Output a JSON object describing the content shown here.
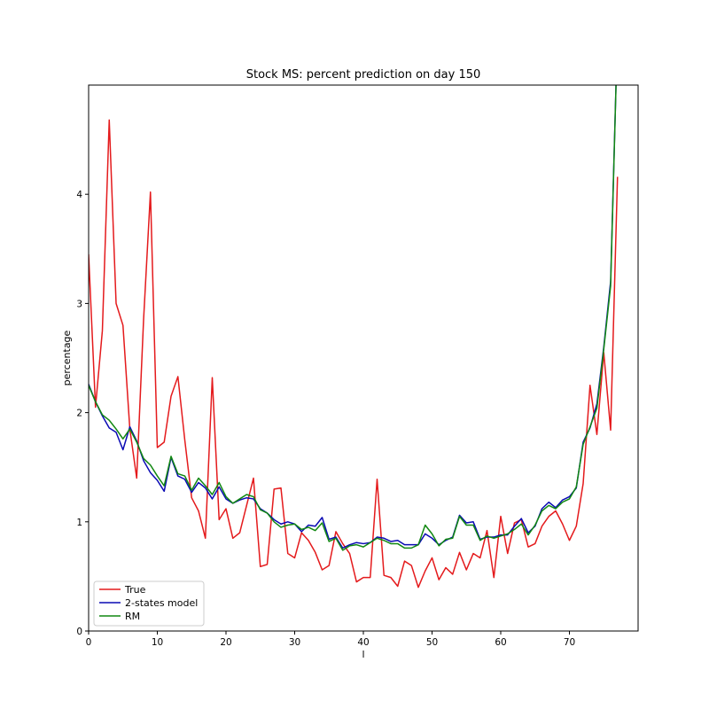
{
  "chart_data": {
    "type": "line",
    "title": "Stock MS: percent prediction on day 150",
    "xlabel": "l",
    "ylabel": "percentage",
    "xlim": [
      0,
      80
    ],
    "ylim": [
      0,
      5
    ],
    "xticks": [
      0,
      10,
      20,
      30,
      40,
      50,
      60,
      70
    ],
    "yticks": [
      0,
      1,
      2,
      3,
      4
    ],
    "grid": false,
    "legend_position": "bottom-left",
    "x": [
      0,
      1,
      2,
      3,
      4,
      5,
      6,
      7,
      8,
      9,
      10,
      11,
      12,
      13,
      14,
      15,
      16,
      17,
      18,
      19,
      20,
      21,
      22,
      23,
      24,
      25,
      26,
      27,
      28,
      29,
      30,
      31,
      32,
      33,
      34,
      35,
      36,
      37,
      38,
      39,
      40,
      41,
      42,
      43,
      44,
      45,
      46,
      47,
      48,
      49,
      50,
      51,
      52,
      53,
      54,
      55,
      56,
      57,
      58,
      59,
      60,
      61,
      62,
      63,
      64,
      65,
      66,
      67,
      68,
      69,
      70,
      71,
      72,
      73,
      74,
      75,
      76,
      77
    ],
    "series": [
      {
        "name": "True",
        "color": "#e41a1c",
        "values": [
          3.45,
          2.05,
          2.75,
          4.68,
          3.0,
          2.8,
          1.85,
          1.4,
          2.85,
          4.02,
          1.68,
          1.73,
          2.15,
          2.33,
          1.75,
          1.22,
          1.1,
          0.85,
          2.32,
          1.02,
          1.12,
          0.85,
          0.9,
          1.15,
          1.4,
          0.59,
          0.61,
          1.3,
          1.31,
          0.71,
          0.67,
          0.9,
          0.83,
          0.72,
          0.56,
          0.6,
          0.91,
          0.8,
          0.71,
          0.45,
          0.49,
          0.49,
          1.39,
          0.51,
          0.49,
          0.41,
          0.64,
          0.6,
          0.4,
          0.55,
          0.67,
          0.47,
          0.58,
          0.52,
          0.72,
          0.56,
          0.71,
          0.67,
          0.92,
          0.49,
          1.05,
          0.71,
          0.99,
          1.02,
          0.77,
          0.8,
          0.96,
          1.05,
          1.1,
          0.98,
          0.83,
          0.96,
          1.35,
          2.25,
          1.8,
          2.55,
          1.84,
          4.16
        ]
      },
      {
        "name": "2-states model",
        "color": "#0a0ab4",
        "values": [
          2.26,
          2.1,
          1.97,
          1.86,
          1.82,
          1.66,
          1.87,
          1.74,
          1.56,
          1.45,
          1.38,
          1.28,
          1.59,
          1.42,
          1.39,
          1.27,
          1.36,
          1.31,
          1.21,
          1.32,
          1.21,
          1.17,
          1.2,
          1.22,
          1.21,
          1.12,
          1.08,
          1.02,
          0.98,
          1.0,
          0.98,
          0.91,
          0.97,
          0.96,
          1.04,
          0.84,
          0.86,
          0.76,
          0.79,
          0.81,
          0.8,
          0.81,
          0.86,
          0.85,
          0.82,
          0.83,
          0.79,
          0.79,
          0.79,
          0.89,
          0.85,
          0.79,
          0.83,
          0.86,
          1.06,
          0.99,
          1.0,
          0.84,
          0.86,
          0.86,
          0.88,
          0.88,
          0.96,
          1.03,
          0.9,
          0.96,
          1.12,
          1.18,
          1.13,
          1.2,
          1.23,
          1.31,
          1.73,
          1.86,
          2.08,
          2.6,
          3.2,
          5.5
        ]
      },
      {
        "name": "RM",
        "color": "#118811",
        "values": [
          2.25,
          2.1,
          1.98,
          1.93,
          1.85,
          1.76,
          1.85,
          1.73,
          1.58,
          1.52,
          1.42,
          1.33,
          1.6,
          1.44,
          1.42,
          1.29,
          1.4,
          1.33,
          1.25,
          1.36,
          1.23,
          1.17,
          1.21,
          1.25,
          1.23,
          1.11,
          1.08,
          1.0,
          0.95,
          0.97,
          0.98,
          0.93,
          0.95,
          0.92,
          0.99,
          0.82,
          0.85,
          0.74,
          0.78,
          0.79,
          0.77,
          0.81,
          0.85,
          0.83,
          0.8,
          0.8,
          0.76,
          0.76,
          0.79,
          0.97,
          0.89,
          0.78,
          0.84,
          0.85,
          1.05,
          0.97,
          0.97,
          0.83,
          0.87,
          0.85,
          0.87,
          0.89,
          0.93,
          0.98,
          0.88,
          0.97,
          1.1,
          1.15,
          1.12,
          1.18,
          1.21,
          1.32,
          1.71,
          1.87,
          2.04,
          2.58,
          3.16,
          5.5
        ]
      }
    ]
  }
}
